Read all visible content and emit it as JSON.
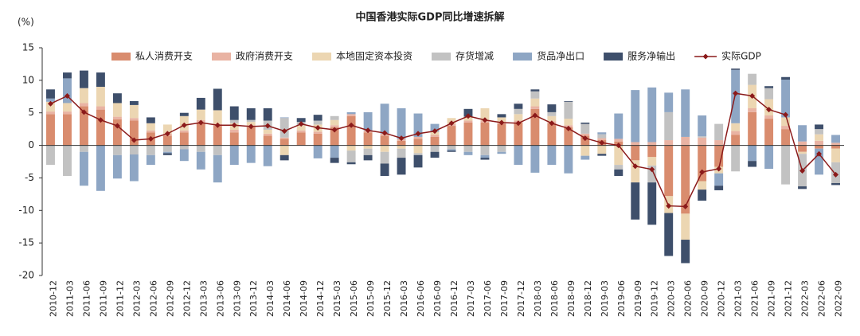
{
  "chart_data": {
    "type": "bar",
    "stacked": true,
    "title": "中国香港实际GDP同比增速拆解",
    "y_label": "(%)",
    "categories": [
      "2010-12",
      "2011-03",
      "2011-06",
      "2011-09",
      "2011-12",
      "2012-03",
      "2012-06",
      "2012-09",
      "2012-12",
      "2013-03",
      "2013-06",
      "2013-09",
      "2013-12",
      "2014-03",
      "2014-06",
      "2014-09",
      "2014-12",
      "2015-03",
      "2015-06",
      "2015-09",
      "2015-12",
      "2016-03",
      "2016-06",
      "2016-09",
      "2016-12",
      "2017-03",
      "2017-06",
      "2017-09",
      "2017-12",
      "2018-03",
      "2018-06",
      "2018-09",
      "2018-12",
      "2019-03",
      "2019-06",
      "2019-09",
      "2019-12",
      "2020-03",
      "2020-06",
      "2020-09",
      "2020-12",
      "2021-03",
      "2021-06",
      "2021-09",
      "2021-12",
      "2022-03",
      "2022-06",
      "2022-09"
    ],
    "series": [
      {
        "name": "私人消费开支",
        "color": "#d98c6e",
        "values": [
          4.8,
          4.8,
          6.0,
          5.5,
          4.0,
          3.8,
          2.0,
          1.5,
          2.0,
          3.5,
          3.0,
          2.0,
          2.8,
          1.5,
          1.0,
          2.0,
          1.8,
          2.8,
          4.5,
          2.0,
          1.5,
          0.7,
          1.0,
          1.3,
          3.0,
          3.5,
          3.5,
          3.3,
          3.5,
          5.6,
          3.4,
          2.8,
          1.5,
          0.8,
          0.6,
          -2.3,
          -1.8,
          -7.8,
          -10.5,
          -5.5,
          -3.3,
          1.6,
          5.1,
          4.1,
          2.5,
          -1.0,
          -0.5,
          -0.5
        ]
      },
      {
        "name": "政府消费开支",
        "color": "#e9b3a3",
        "values": [
          0.4,
          0.4,
          0.5,
          0.5,
          0.4,
          0.4,
          0.3,
          0.3,
          0.3,
          0.4,
          0.3,
          0.4,
          0.3,
          0.3,
          0.2,
          0.3,
          0.3,
          0.3,
          0.3,
          0.3,
          0.3,
          0.3,
          0.3,
          0.3,
          0.3,
          0.3,
          0.3,
          0.3,
          0.3,
          0.4,
          0.3,
          0.3,
          0.3,
          0.3,
          0.4,
          0.5,
          0.5,
          0.8,
          1.3,
          1.2,
          0.8,
          0.6,
          0.6,
          0.5,
          0.5,
          0.6,
          0.7,
          0.4
        ]
      },
      {
        "name": "本地固定资本投资",
        "color": "#ecd6b2",
        "values": [
          1.5,
          1.3,
          2.3,
          3.0,
          2.1,
          2.0,
          1.1,
          1.4,
          2.2,
          1.6,
          2.1,
          1.0,
          0.5,
          0.6,
          -1.5,
          0.8,
          1.1,
          0.8,
          -0.8,
          -0.5,
          -1.0,
          -0.5,
          -1.2,
          0.5,
          0.9,
          0.6,
          1.9,
          0.7,
          1.0,
          1.2,
          0.8,
          1.0,
          -1.6,
          -1.3,
          -3.0,
          -3.4,
          -1.3,
          -2.6,
          -4.0,
          -1.3,
          -1.0,
          1.2,
          3.6,
          2.5,
          1.3,
          -0.3,
          1.0,
          -2.1
        ]
      },
      {
        "name": "存货增减",
        "color": "#c2c2c2",
        "values": [
          -3.0,
          -4.7,
          -1.0,
          0.0,
          -1.5,
          -1.4,
          -1.5,
          -1.0,
          -0.6,
          -1.0,
          -1.5,
          0.5,
          0.3,
          1.4,
          3.0,
          0.5,
          0.6,
          0.6,
          -1.8,
          -1.0,
          -1.8,
          -1.4,
          -0.3,
          -1.0,
          -0.6,
          -1.0,
          -1.5,
          -1.0,
          0.8,
          1.1,
          0.6,
          2.6,
          1.5,
          0.6,
          -0.7,
          0.0,
          -2.6,
          4.3,
          0.0,
          0.2,
          2.5,
          -4.0,
          1.7,
          1.7,
          -6.0,
          -5.0,
          0.8,
          -3.2
        ]
      },
      {
        "name": "货品净出口",
        "color": "#8ea6c4",
        "values": [
          0.5,
          3.8,
          -5.2,
          -7.0,
          -3.6,
          -4.1,
          -1.5,
          -0.2,
          -1.8,
          -2.7,
          -4.2,
          -3.0,
          -2.7,
          -3.2,
          0.1,
          0.0,
          -2.0,
          -1.9,
          0.3,
          2.8,
          4.6,
          4.7,
          3.6,
          1.2,
          -0.2,
          -0.5,
          -0.4,
          -0.3,
          -3.0,
          -4.2,
          -3.0,
          -4.3,
          -0.6,
          0.3,
          3.9,
          8.0,
          8.4,
          3.0,
          7.3,
          3.2,
          -1.9,
          8.2,
          -2.4,
          -3.6,
          5.8,
          2.5,
          -4.0,
          1.2
        ]
      },
      {
        "name": "服务净输出",
        "color": "#3e4f6b",
        "values": [
          1.4,
          0.9,
          2.7,
          2.2,
          1.5,
          0.6,
          0.9,
          -0.3,
          0.5,
          1.8,
          3.3,
          2.1,
          1.8,
          1.9,
          -0.8,
          0.6,
          0.9,
          -0.8,
          -0.3,
          -0.8,
          -1.9,
          -2.6,
          -1.9,
          -0.9,
          -0.2,
          1.2,
          -0.3,
          0.5,
          0.8,
          0.3,
          1.2,
          0.1,
          0.2,
          -0.3,
          -1.0,
          -5.7,
          -6.5,
          -6.6,
          -3.6,
          -1.7,
          -0.7,
          0.2,
          -0.9,
          0.3,
          0.4,
          -0.4,
          0.7,
          -0.3
        ]
      }
    ],
    "line_series": {
      "name": "实际GDP",
      "color": "#8b1a1a",
      "values": [
        6.4,
        7.6,
        5.1,
        3.9,
        3.0,
        0.8,
        1.0,
        1.8,
        3.1,
        3.5,
        3.1,
        3.1,
        2.9,
        3.0,
        2.2,
        3.3,
        2.7,
        2.4,
        3.1,
        2.3,
        1.9,
        1.1,
        1.8,
        2.2,
        3.4,
        4.5,
        3.9,
        3.5,
        3.4,
        4.6,
        3.4,
        2.6,
        1.1,
        0.4,
        0.0,
        -3.2,
        -3.7,
        -9.3,
        -9.4,
        -4.1,
        -3.6,
        8.0,
        7.6,
        5.5,
        4.7,
        -3.9,
        -1.3,
        -4.5
      ]
    },
    "ylim": [
      -20,
      15
    ],
    "yticks": [
      -20,
      -15,
      -10,
      -5,
      0,
      5,
      10,
      15
    ],
    "grid": false,
    "legend": "top"
  }
}
